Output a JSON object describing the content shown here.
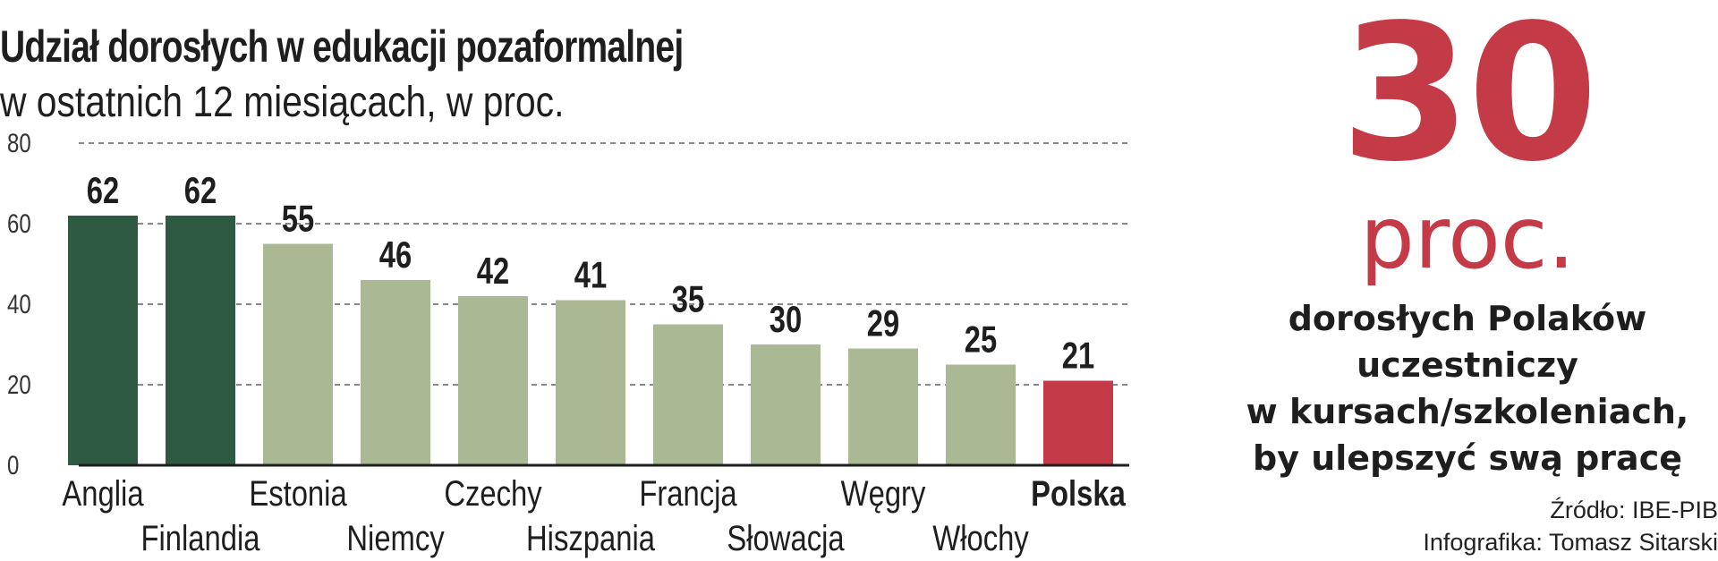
{
  "chart_data": {
    "type": "bar",
    "title": "Udział dorosłych w edukacji pozaformalnej",
    "subtitle": "w ostatnich 12 miesiącach, w proc.",
    "categories": [
      "Anglia",
      "Finlandia",
      "Estonia",
      "Niemcy",
      "Czechy",
      "Hiszpania",
      "Francja",
      "Słowacja",
      "Węgry",
      "Włochy",
      "Polska"
    ],
    "values": [
      62,
      62,
      55,
      46,
      42,
      41,
      35,
      30,
      29,
      25,
      21
    ],
    "bar_colors": [
      "#2e5a44",
      "#2e5a44",
      "#aab893",
      "#aab893",
      "#aab893",
      "#aab893",
      "#aab893",
      "#aab893",
      "#aab893",
      "#aab893",
      "#c43a47"
    ],
    "highlight": "Polska",
    "ylim": [
      0,
      80
    ],
    "yticks": [
      0,
      20,
      40,
      60,
      80
    ],
    "grid": true,
    "xlabel": "",
    "ylabel": ""
  },
  "highlight": {
    "number": "30",
    "unit": "proc.",
    "lines": [
      "dorosłych Polaków",
      "uczestniczy",
      "w kursach/szkoleniach,",
      "by ulepszyć swą pracę"
    ],
    "color": "#c43a47"
  },
  "source": "Źródło: IBE-PIB",
  "credit": "Infografika: Tomasz Sitarski"
}
